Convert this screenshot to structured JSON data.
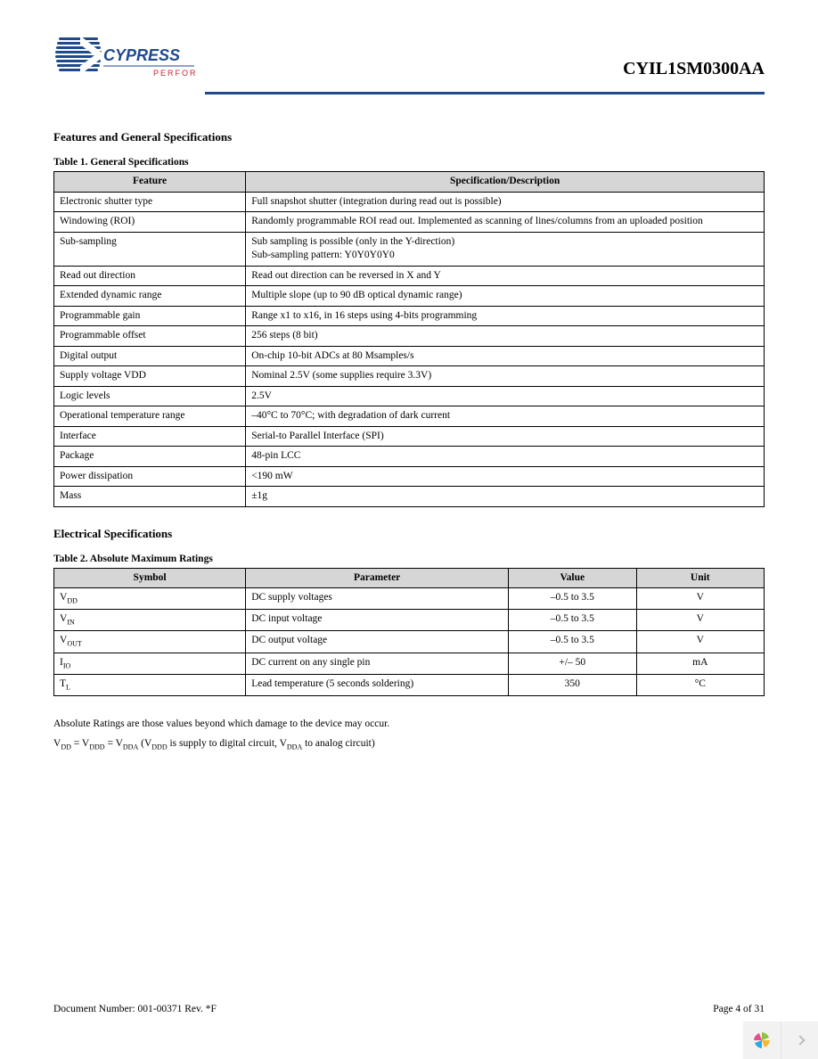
{
  "header": {
    "brand_top": "CYPRESS",
    "brand_bottom": "PERFORM",
    "part_number": "CYIL1SM0300AA"
  },
  "section1": {
    "title": "Features and General Specifications",
    "table_caption": "Table 1. General Specifications",
    "columns": [
      "Feature",
      "Specification/Description"
    ],
    "rows": [
      [
        "Electronic shutter type",
        "Full snapshot shutter (integration during read out is possible)"
      ],
      [
        "Windowing (ROI)",
        "Randomly programmable ROI read out. Implemented as scanning of lines/columns from an uploaded position"
      ],
      [
        "Sub-sampling",
        "Sub sampling is possible (only in the Y-direction)\nSub-sampling pattern: Y0Y0Y0Y0"
      ],
      [
        "Read out direction",
        "Read out direction can be reversed in X and Y"
      ],
      [
        "Extended dynamic range",
        "Multiple slope (up to 90 dB optical dynamic range)"
      ],
      [
        "Programmable gain",
        "Range x1 to x16, in 16 steps using 4-bits programming"
      ],
      [
        "Programmable offset",
        "256 steps (8 bit)"
      ],
      [
        "Digital output",
        "On-chip 10-bit ADCs at 80 Msamples/s"
      ],
      [
        "Supply voltage VDD",
        "Nominal 2.5V (some supplies require 3.3V)"
      ],
      [
        "Logic levels",
        "2.5V"
      ],
      [
        "Operational temperature range",
        "–40°C to 70°C; with degradation of dark current"
      ],
      [
        "Interface",
        "Serial-to Parallel Interface (SPI)"
      ],
      [
        "Package",
        "48-pin LCC"
      ],
      [
        "Power dissipation",
        "<190 mW"
      ],
      [
        "Mass",
        "±1g"
      ]
    ]
  },
  "section2": {
    "title": "Electrical Specifications",
    "table_caption": "Table 2. Absolute Maximum Ratings",
    "columns": [
      "Symbol",
      "Parameter",
      "Value",
      "Unit"
    ],
    "rows": [
      {
        "sym_main": "V",
        "sym_sub": "DD",
        "param": "DC supply voltages",
        "value": "–0.5 to 3.5",
        "unit": "V"
      },
      {
        "sym_main": "V",
        "sym_sub": "IN",
        "param": "DC input voltage",
        "value": "–0.5 to 3.5",
        "unit": "V"
      },
      {
        "sym_main": "V",
        "sym_sub": "OUT",
        "param": "DC output voltage",
        "value": "–0.5 to 3.5",
        "unit": "V"
      },
      {
        "sym_main": "I",
        "sym_sub": "IO",
        "param": "DC current on any single pin",
        "value": "+/– 50",
        "unit": "mA"
      },
      {
        "sym_main": "T",
        "sym_sub": "L",
        "param": "Lead temperature (5 seconds soldering)",
        "value": "350",
        "unit": "°C"
      }
    ],
    "note1": "Absolute Ratings are those values beyond which damage to the device may occur.",
    "note2_parts": {
      "a": "V",
      "a_sub": "DD",
      "b": " = V",
      "b_sub": "DDD",
      "c": " = V",
      "c_sub": "DDA",
      "d": "  (V",
      "d_sub": "DDD",
      "e": " is supply to digital circuit, V",
      "f_sub": "DDA",
      "g": " to analog circuit)"
    }
  },
  "footer": {
    "doc": "Document Number: 001-00371  Rev. *F",
    "page": "Page 4 of 31"
  },
  "colors": {
    "rule": "#1e4a8c",
    "th_bg": "#d6d6d6",
    "logo_blue": "#1e4a8c",
    "logo_red": "#c1272d"
  }
}
